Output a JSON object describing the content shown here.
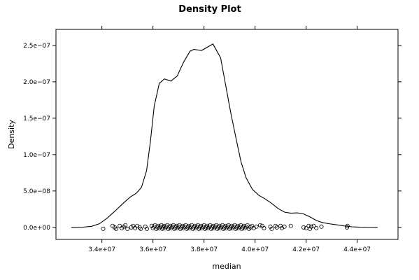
{
  "chart_data": {
    "type": "line",
    "title": "Density Plot",
    "xlabel": "median",
    "ylabel": "Density",
    "xlim": [
      32200000,
      45600000
    ],
    "ylim": [
      -1.65e-08,
      2.72e-07
    ],
    "x_ticks": [
      {
        "value": 34000000,
        "label": "3.4e+07"
      },
      {
        "value": 36000000,
        "label": "3.6e+07"
      },
      {
        "value": 38000000,
        "label": "3.8e+07"
      },
      {
        "value": 40000000,
        "label": "4.0e+07"
      },
      {
        "value": 42000000,
        "label": "4.2e+07"
      },
      {
        "value": 44000000,
        "label": "4.4e+07"
      }
    ],
    "y_ticks": [
      {
        "value": 0,
        "label": "0.0e+00"
      },
      {
        "value": 5e-08,
        "label": "5.0e−08"
      },
      {
        "value": 1e-07,
        "label": "1.0e−07"
      },
      {
        "value": 1.5e-07,
        "label": "1.5e−07"
      },
      {
        "value": 2e-07,
        "label": "2.0e−07"
      },
      {
        "value": 2.5e-07,
        "label": "2.5e−07"
      }
    ],
    "grid": false,
    "series": [
      {
        "x": [
          32800000,
          33200000,
          33600000,
          33900000,
          34200000,
          34500000,
          34800000,
          35100000,
          35350000,
          35550000,
          35750000,
          35900000,
          36050000,
          36250000,
          36450000,
          36700000,
          36950000,
          37200000,
          37450000,
          37600000,
          37900000,
          38150000,
          38350000,
          38650000,
          38850000,
          39050000,
          39250000,
          39450000,
          39650000,
          39900000,
          40150000,
          40400000,
          40650000,
          40900000,
          41150000,
          41400000,
          41650000,
          41900000,
          42150000,
          42400000,
          42650000,
          42900000,
          43200000,
          43500000,
          43800000,
          44100000,
          44400000,
          44800000
        ],
        "y": [
          0,
          1e-10,
          1.5e-09,
          5e-09,
          1.25e-08,
          2.2e-08,
          3.2e-08,
          4.15e-08,
          4.7e-08,
          5.5e-08,
          7.8e-08,
          1.18e-07,
          1.67e-07,
          1.98e-07,
          2.04e-07,
          2.01e-07,
          2.08e-07,
          2.27e-07,
          2.42e-07,
          2.445e-07,
          2.43e-07,
          2.48e-07,
          2.52e-07,
          2.33e-07,
          1.95e-07,
          1.57e-07,
          1.23e-07,
          9e-08,
          6.8e-08,
          5.2e-08,
          4.4e-08,
          3.9e-08,
          3.3e-08,
          2.6e-08,
          2.1e-08,
          1.95e-08,
          2e-08,
          1.85e-08,
          1.45e-08,
          9.5e-09,
          6.5e-09,
          5e-09,
          3.5e-09,
          2e-09,
          8e-10,
          3e-10,
          1e-10,
          0
        ]
      }
    ],
    "rug_points": {
      "marker": "open-circle",
      "x": [
        34050000,
        34420000,
        34500000,
        34560000,
        34700000,
        34780000,
        34850000,
        34920000,
        35000000,
        35150000,
        35220000,
        35300000,
        35380000,
        35480000,
        35520000,
        35700000,
        35760000,
        35950000,
        36000000,
        36050000,
        36080000,
        36130000,
        36180000,
        36210000,
        36250000,
        36290000,
        36330000,
        36370000,
        36400000,
        36430000,
        36480000,
        36520000,
        36560000,
        36600000,
        36640000,
        36680000,
        36720000,
        36760000,
        36800000,
        36840000,
        36880000,
        36920000,
        36960000,
        37000000,
        37040000,
        37080000,
        37120000,
        37160000,
        37200000,
        37240000,
        37280000,
        37320000,
        37360000,
        37400000,
        37440000,
        37480000,
        37520000,
        37560000,
        37600000,
        37640000,
        37680000,
        37720000,
        37760000,
        37800000,
        37840000,
        37880000,
        37920000,
        37960000,
        38000000,
        38040000,
        38080000,
        38120000,
        38160000,
        38200000,
        38240000,
        38280000,
        38320000,
        38360000,
        38400000,
        38440000,
        38480000,
        38520000,
        38560000,
        38600000,
        38640000,
        38680000,
        38720000,
        38760000,
        38800000,
        38840000,
        38880000,
        38920000,
        38960000,
        39000000,
        39040000,
        39080000,
        39120000,
        39160000,
        39200000,
        39240000,
        39280000,
        39320000,
        39360000,
        39400000,
        39440000,
        39480000,
        39520000,
        39560000,
        39600000,
        39650000,
        39700000,
        39760000,
        39820000,
        39880000,
        39950000,
        40050000,
        40200000,
        40280000,
        40350000,
        40600000,
        40650000,
        40800000,
        40850000,
        41000000,
        41050000,
        41150000,
        41400000,
        41900000,
        42000000,
        42100000,
        42150000,
        42200000,
        42300000,
        42400000,
        42600000,
        43600000,
        43620000
      ],
      "y": [
        -2e-09,
        2e-09,
        0,
        -2e-09,
        2e-09,
        -1e-09,
        1e-09,
        3e-09,
        -2e-09,
        0,
        2e-09,
        -1e-09,
        2e-09,
        0,
        -2e-09,
        1e-09,
        -2e-09,
        2e-09,
        -1e-09,
        1e-09,
        3e-09,
        -2e-09,
        0,
        2e-09,
        -1e-09,
        1e-09,
        3e-09,
        -2e-09,
        0,
        2e-09,
        -1e-09,
        1e-09,
        3e-09,
        -2e-09,
        0,
        2e-09,
        -1e-09,
        1e-09,
        3e-09,
        -2e-09,
        0,
        2e-09,
        -1e-09,
        1e-09,
        3e-09,
        -2e-09,
        0,
        2e-09,
        -1e-09,
        1e-09,
        3e-09,
        -2e-09,
        0,
        2e-09,
        -1e-09,
        1e-09,
        3e-09,
        -2e-09,
        0,
        2e-09,
        -1e-09,
        1e-09,
        3e-09,
        -2e-09,
        0,
        2e-09,
        -1e-09,
        1e-09,
        3e-09,
        -2e-09,
        0,
        2e-09,
        -1e-09,
        1e-09,
        3e-09,
        -2e-09,
        0,
        2e-09,
        -1e-09,
        1e-09,
        3e-09,
        -2e-09,
        0,
        2e-09,
        -1e-09,
        1e-09,
        3e-09,
        -2e-09,
        0,
        2e-09,
        -1e-09,
        1e-09,
        3e-09,
        -2e-09,
        0,
        2e-09,
        -1e-09,
        1e-09,
        3e-09,
        -2e-09,
        0,
        2e-09,
        -1e-09,
        1e-09,
        3e-09,
        -2e-09,
        0,
        2e-09,
        -1e-09,
        1e-09,
        3e-09,
        -2e-09,
        0,
        2e-09,
        -1e-09,
        1e-09,
        3e-09,
        2e-09,
        -1e-09,
        1e-09,
        -2e-09,
        2e-09,
        0,
        2e-09,
        -1e-09,
        1e-09,
        2e-09,
        0,
        -1e-09,
        2e-09,
        -2e-09,
        1e-09,
        2e-09,
        -1e-09,
        1e-09,
        0,
        2e-09
      ]
    },
    "colors": {
      "line": "#000000",
      "points": "#000000",
      "frame": "#000000"
    }
  }
}
